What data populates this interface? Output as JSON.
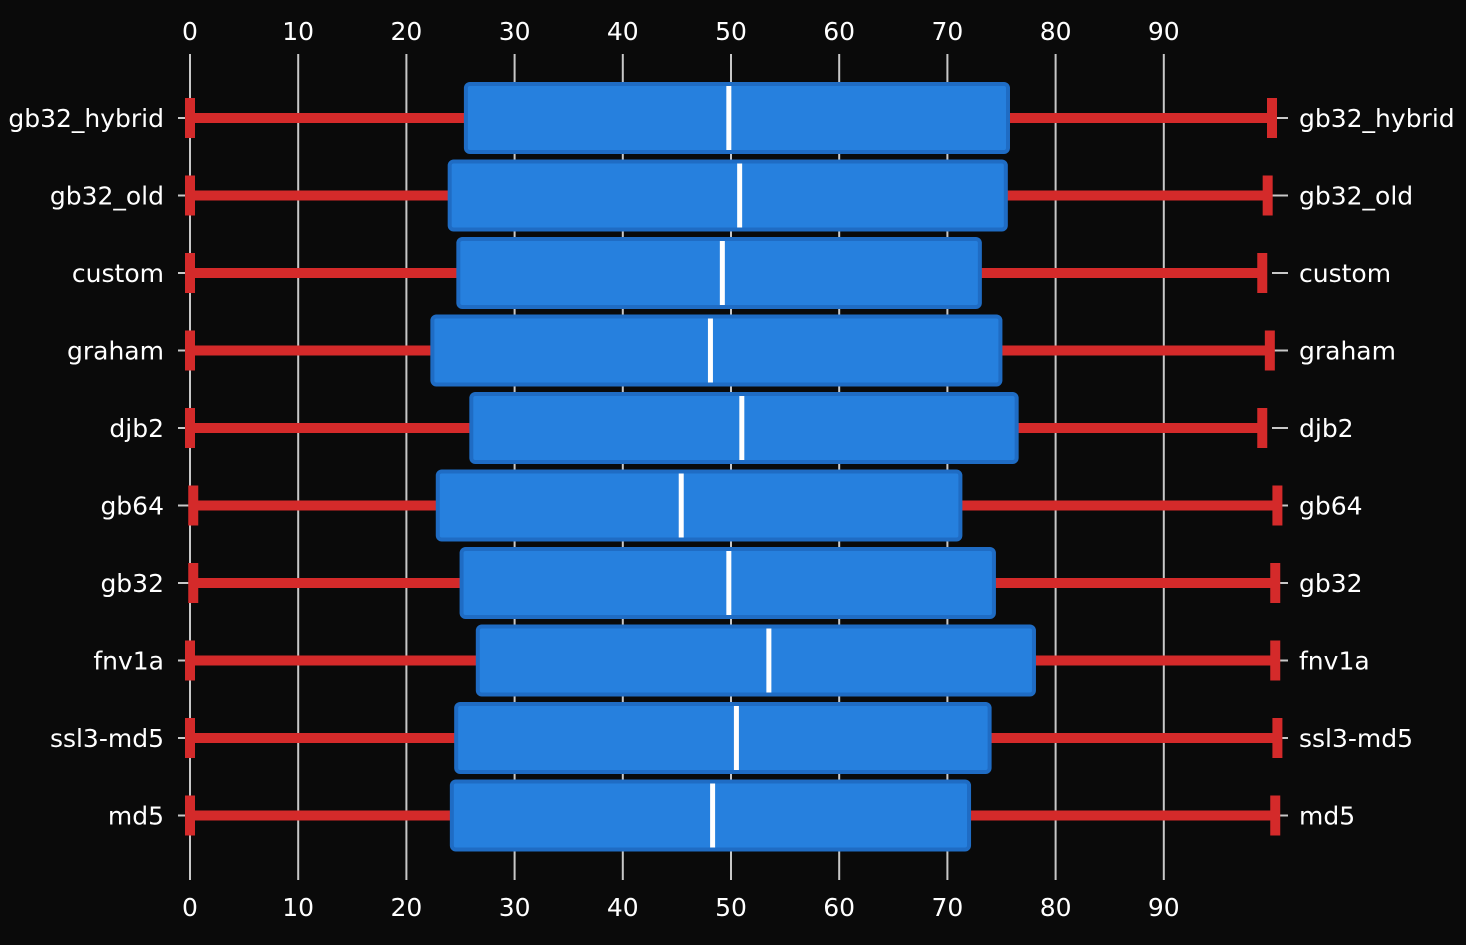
{
  "chart_data": {
    "type": "box",
    "orientation": "horizontal",
    "x_ticks": [
      0,
      10,
      20,
      30,
      40,
      50,
      60,
      70,
      80,
      90
    ],
    "xlim": [
      0,
      100
    ],
    "grid": true,
    "categories": [
      "gb32_hybrid",
      "gb32_old",
      "custom",
      "graham",
      "djb2",
      "gb64",
      "gb32",
      "fnv1a",
      "ssl3-md5",
      "md5"
    ],
    "boxes": [
      {
        "label": "gb32_hybrid",
        "min": 0.0,
        "q1": 25.5,
        "median": 49.8,
        "q3": 75.6,
        "max": 100.0
      },
      {
        "label": "gb32_old",
        "min": 0.0,
        "q1": 24.0,
        "median": 50.8,
        "q3": 75.4,
        "max": 99.6
      },
      {
        "label": "custom",
        "min": 0.0,
        "q1": 24.8,
        "median": 49.2,
        "q3": 73.0,
        "max": 99.1
      },
      {
        "label": "graham",
        "min": 0.0,
        "q1": 22.4,
        "median": 48.1,
        "q3": 74.9,
        "max": 99.8
      },
      {
        "label": "djb2",
        "min": 0.0,
        "q1": 26.0,
        "median": 51.0,
        "q3": 76.4,
        "max": 99.1
      },
      {
        "label": "gb64",
        "min": 0.3,
        "q1": 22.9,
        "median": 45.4,
        "q3": 71.2,
        "max": 100.5
      },
      {
        "label": "gb32",
        "min": 0.3,
        "q1": 25.1,
        "median": 49.8,
        "q3": 74.3,
        "max": 100.3
      },
      {
        "label": "fnv1a",
        "min": 0.0,
        "q1": 26.6,
        "median": 53.5,
        "q3": 78.0,
        "max": 100.3
      },
      {
        "label": "ssl3-md5",
        "min": 0.0,
        "q1": 24.6,
        "median": 50.5,
        "q3": 73.9,
        "max": 100.5
      },
      {
        "label": "md5",
        "min": 0.0,
        "q1": 24.2,
        "median": 48.3,
        "q3": 72.0,
        "max": 100.3
      }
    ],
    "colors": {
      "background": "#0a0a0a",
      "grid": "#c8c8c8",
      "box_fill": "#2680de",
      "box_stroke": "#1f6cc4",
      "whisker": "#d42a2a",
      "median": "#ffffff",
      "text": "#ffffff"
    }
  }
}
